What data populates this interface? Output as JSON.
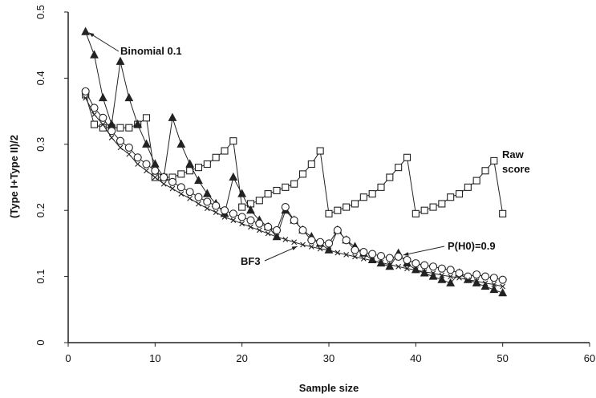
{
  "chart_data": {
    "type": "line",
    "x_label": "Sample size",
    "y_label": "(Type I+Type II)/2",
    "xlim": [
      0,
      60
    ],
    "xticks": [
      0,
      10,
      20,
      30,
      40,
      50,
      60
    ],
    "ylim": [
      0,
      0.5
    ],
    "yticks": [
      0,
      0.1,
      0.2,
      0.3,
      0.4,
      0.5
    ],
    "x": [
      2,
      3,
      4,
      5,
      6,
      7,
      8,
      9,
      10,
      11,
      12,
      13,
      14,
      15,
      16,
      17,
      18,
      19,
      20,
      21,
      22,
      23,
      24,
      25,
      26,
      27,
      28,
      29,
      30,
      31,
      32,
      33,
      34,
      35,
      36,
      37,
      38,
      39,
      40,
      41,
      42,
      43,
      44,
      45,
      46,
      47,
      48,
      49,
      50
    ],
    "series": [
      {
        "name": "Raw score",
        "color": "#222",
        "marker": "square",
        "values": [
          0.375,
          0.33,
          0.325,
          0.325,
          0.325,
          0.325,
          0.33,
          0.34,
          0.25,
          0.25,
          0.25,
          0.255,
          0.26,
          0.265,
          0.27,
          0.28,
          0.29,
          0.305,
          0.205,
          0.21,
          0.215,
          0.225,
          0.23,
          0.235,
          0.24,
          0.255,
          0.27,
          0.29,
          0.195,
          0.2,
          0.205,
          0.21,
          0.22,
          0.225,
          0.235,
          0.25,
          0.265,
          0.28,
          0.195,
          0.2,
          0.205,
          0.21,
          0.22,
          0.225,
          0.235,
          0.245,
          0.26,
          0.275,
          0.195
        ]
      },
      {
        "name": "Binomial 0.1",
        "color": "#222",
        "marker": "triangle",
        "values": [
          0.47,
          0.435,
          0.37,
          0.33,
          0.425,
          0.37,
          0.33,
          0.3,
          0.27,
          0.25,
          0.34,
          0.3,
          0.27,
          0.245,
          0.225,
          0.21,
          0.195,
          0.25,
          0.225,
          0.2,
          0.185,
          0.175,
          0.16,
          0.2,
          0.185,
          0.17,
          0.16,
          0.15,
          0.14,
          0.17,
          0.155,
          0.145,
          0.135,
          0.125,
          0.12,
          0.115,
          0.135,
          0.12,
          0.11,
          0.105,
          0.1,
          0.095,
          0.09,
          0.105,
          0.095,
          0.09,
          0.085,
          0.08,
          0.075
        ]
      },
      {
        "name": "P(H0)=0.9",
        "color": "#222",
        "marker": "circle",
        "values": [
          0.38,
          0.355,
          0.34,
          0.32,
          0.305,
          0.295,
          0.28,
          0.27,
          0.26,
          0.25,
          0.243,
          0.235,
          0.228,
          0.22,
          0.213,
          0.207,
          0.2,
          0.195,
          0.19,
          0.185,
          0.18,
          0.175,
          0.17,
          0.205,
          0.185,
          0.17,
          0.155,
          0.152,
          0.15,
          0.17,
          0.155,
          0.14,
          0.137,
          0.134,
          0.131,
          0.128,
          0.13,
          0.125,
          0.12,
          0.117,
          0.115,
          0.112,
          0.11,
          0.105,
          0.1,
          0.103,
          0.1,
          0.098,
          0.095
        ]
      },
      {
        "name": "BF3",
        "color": "#222",
        "marker": "x",
        "values": [
          0.37,
          0.345,
          0.33,
          0.31,
          0.295,
          0.285,
          0.27,
          0.26,
          0.25,
          0.24,
          0.233,
          0.225,
          0.218,
          0.21,
          0.203,
          0.197,
          0.19,
          0.185,
          0.18,
          0.175,
          0.17,
          0.165,
          0.16,
          0.156,
          0.152,
          0.148,
          0.145,
          0.142,
          0.14,
          0.136,
          0.133,
          0.13,
          0.127,
          0.124,
          0.121,
          0.118,
          0.115,
          0.112,
          0.11,
          0.107,
          0.105,
          0.102,
          0.1,
          0.098,
          0.095,
          0.093,
          0.09,
          0.088,
          0.085
        ]
      }
    ]
  }
}
